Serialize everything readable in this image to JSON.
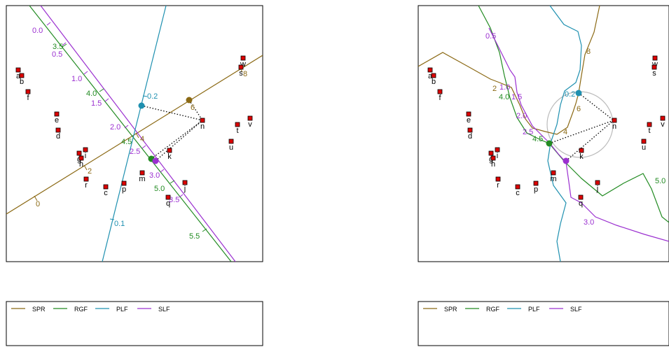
{
  "legend": [
    {
      "name": "SPR",
      "color": "#8B6914"
    },
    {
      "name": "RGF",
      "color": "#228B22"
    },
    {
      "name": "PLF",
      "color": "#1E90B0"
    },
    {
      "name": "SLF",
      "color": "#9B30D0"
    }
  ],
  "point_labels": [
    "a",
    "b",
    "c",
    "d",
    "e",
    "f",
    "g",
    "h",
    "i",
    "j",
    "k",
    "m",
    "n",
    "p",
    "q",
    "r",
    "s",
    "t",
    "u",
    "v",
    "w"
  ],
  "left": {
    "spr_ticks": [
      "0",
      "2",
      "4",
      "6",
      "8"
    ],
    "rgf_ticks": [
      "3.5",
      "4.0",
      "4.5",
      "5.0",
      "5.5"
    ],
    "plf_ticks": [
      "0.1",
      "0.2"
    ],
    "slf_ticks": [
      "0.0",
      "0.5",
      "1.0",
      "1.5",
      "2.0",
      "2.5",
      "3.0",
      "3.5"
    ]
  },
  "right": {
    "spr_ticks": [
      "2",
      "4",
      "6",
      "8"
    ],
    "rgf_ticks": [
      "4.0",
      "4.5",
      "5.0"
    ],
    "plf_ticks": [
      "0.2"
    ],
    "slf_ticks": [
      "0.5",
      "1.0",
      "1.5",
      "2.0",
      "2.5",
      "3.0"
    ]
  },
  "colors": {
    "spr": "#8B6914",
    "rgf": "#228B22",
    "plf": "#1E90B0",
    "slf": "#9B30D0",
    "point": "#DD0000",
    "circle": "#BBBBBB"
  }
}
